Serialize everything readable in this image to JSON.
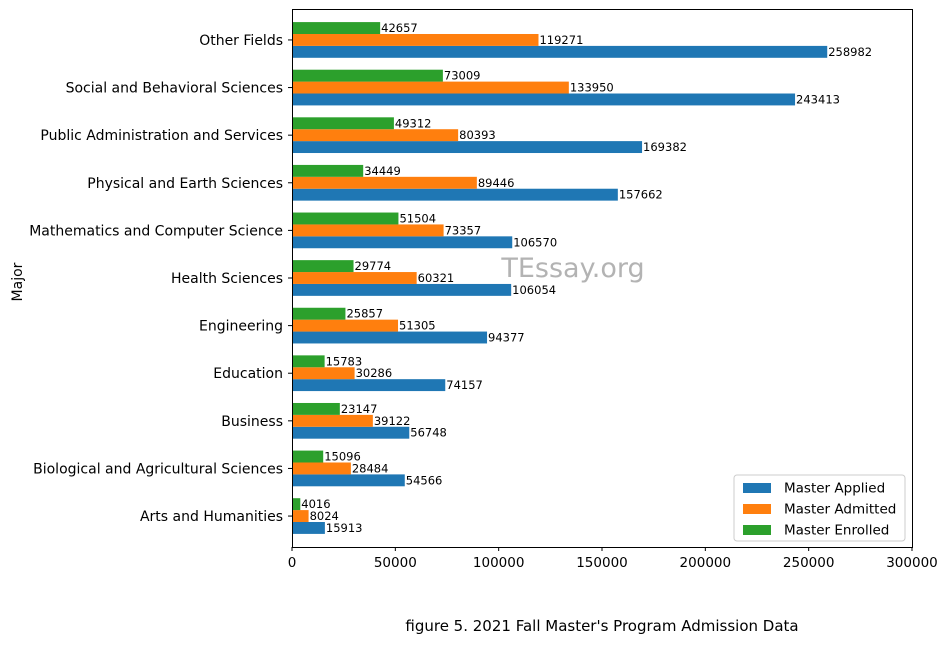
{
  "caption": "figure 5. 2021 Fall Master's Program Admission Data",
  "watermark": "TEssay.org",
  "chart_data": {
    "type": "bar",
    "orientation": "horizontal",
    "ylabel": "Major",
    "xlim": [
      0,
      300000
    ],
    "xticks": [
      0,
      50000,
      100000,
      150000,
      200000,
      250000,
      300000
    ],
    "legend_position": "lower-right",
    "grid": false,
    "categories": [
      "Arts and Humanities",
      "Biological and Agricultural Sciences",
      "Business",
      "Education",
      "Engineering",
      "Health Sciences",
      "Mathematics and Computer Science",
      "Physical and Earth Sciences",
      "Public Administration and Services",
      "Social and Behavioral Sciences",
      "Other Fields"
    ],
    "series": [
      {
        "name": "Master Applied",
        "color": "#1f77b4",
        "values": [
          15913,
          54566,
          56748,
          74157,
          94377,
          106054,
          106570,
          157662,
          169382,
          243413,
          258982
        ]
      },
      {
        "name": "Master Admitted",
        "color": "#ff7f0e",
        "values": [
          8024,
          28484,
          39122,
          30286,
          51305,
          60321,
          73357,
          89446,
          80393,
          133950,
          119271
        ]
      },
      {
        "name": "Master Enrolled",
        "color": "#2ca02c",
        "values": [
          4016,
          15096,
          23147,
          15783,
          25857,
          29774,
          51504,
          34449,
          49312,
          73009,
          42657
        ]
      }
    ]
  }
}
